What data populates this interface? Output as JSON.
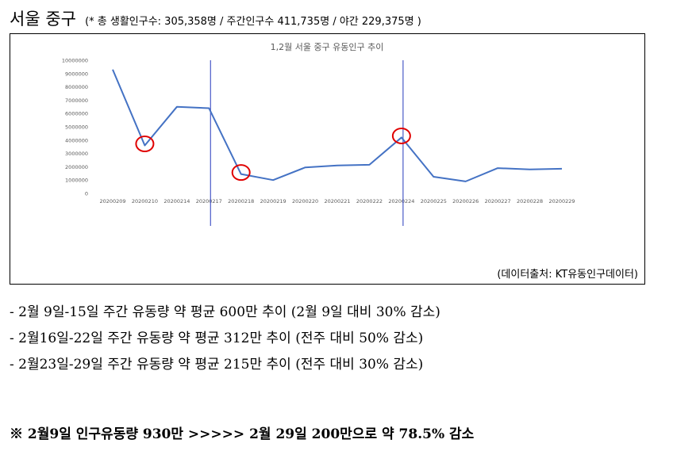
{
  "heading": {
    "title": "서울 중구",
    "subtitle": "(* 총 생활인구수: 305,358명 / 주간인구수 411,735명 / 야간 229,375명 )"
  },
  "chart_data": {
    "type": "line",
    "title": "1,2월 서울 중구 유동인구 추이",
    "categories": [
      "20200209",
      "20200210",
      "20200214",
      "20200217",
      "20200218",
      "20200219",
      "20200220",
      "20200221",
      "20200222",
      "20200224",
      "20200225",
      "20200226",
      "20200227",
      "20200228",
      "20200229"
    ],
    "y_ticks": [
      "10000000",
      "9000000",
      "8000000",
      "7000000",
      "6000000",
      "5000000",
      "4000000",
      "3000000",
      "2000000",
      "1000000",
      "0"
    ],
    "ylim": [
      0,
      10000000
    ],
    "series": [
      {
        "values": [
          9300000,
          3600000,
          6500000,
          6400000,
          1450000,
          1000000,
          1950000,
          2100000,
          2150000,
          4200000,
          1250000,
          900000,
          1900000,
          1800000,
          1850000
        ]
      }
    ],
    "line_color": "#4472c4",
    "marker_color": "#e00000",
    "highlighted_indices": [
      1,
      4,
      9
    ],
    "divider_indices": [
      3,
      9
    ]
  },
  "source_note": "(데이터출처: KT유동인구데이터)",
  "bullets": [
    "- 2월 9일-15일 주간 유동량 약 평균 600만 추이 (2월 9일 대비 30% 감소)",
    "- 2월16일-22일 주간 유동량 약 평균 312만 추이 (전주 대비 50% 감소)",
    "- 2월23일-29일 주간 유동량 약 평균 215만 추이 (전주 대비 30% 감소)"
  ],
  "summary": "※ 2월9일 인구유동량 930만 >>>>> 2월 29일 200만으로 약 78.5% 감소"
}
